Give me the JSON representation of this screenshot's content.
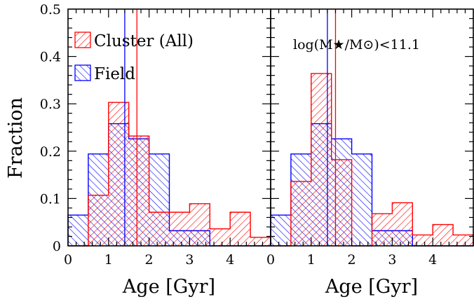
{
  "chart_data": [
    {
      "type": "histogram",
      "panel": "left",
      "annotation": "",
      "xlabel": "Age [Gyr]",
      "ylabel": "Fraction",
      "xlim": [
        0,
        5
      ],
      "ylim": [
        0,
        0.5
      ],
      "xticks": [
        "0",
        "1",
        "2",
        "3",
        "4"
      ],
      "yticks": [
        "0",
        "0.1",
        "0.2",
        "0.3",
        "0.4",
        "0.5"
      ],
      "legend": {
        "position": "top-left",
        "entries": [
          "Cluster (All)",
          "Field"
        ]
      },
      "bin_edges": [
        0,
        0.5,
        1,
        1.5,
        2,
        2.5,
        3,
        3.5,
        4,
        4.5,
        5
      ],
      "series": [
        {
          "name": "Cluster (All)",
          "color": "#ff0000",
          "values": [
            0.0,
            0.107,
            0.303,
            0.232,
            0.071,
            0.071,
            0.089,
            0.036,
            0.071,
            0.018
          ],
          "median": 1.7
        },
        {
          "name": "Field",
          "color": "#0000ff",
          "values": [
            0.065,
            0.194,
            0.258,
            0.226,
            0.194,
            0.032,
            0.032,
            0.0,
            0.0,
            0.0
          ],
          "median": 1.4
        }
      ]
    },
    {
      "type": "histogram",
      "panel": "right",
      "annotation": "log(M★/M⊙)<11.1",
      "xlabel": "Age [Gyr]",
      "ylabel": "",
      "xlim": [
        0,
        5
      ],
      "ylim": [
        0,
        0.5
      ],
      "xticks": [
        "0",
        "1",
        "2",
        "3",
        "4"
      ],
      "yticks": [],
      "legend": null,
      "bin_edges": [
        0,
        0.5,
        1,
        1.5,
        2,
        2.5,
        3,
        3.5,
        4,
        4.5,
        5
      ],
      "series": [
        {
          "name": "Cluster",
          "color": "#ff0000",
          "values": [
            0.0,
            0.136,
            0.364,
            0.182,
            0.0,
            0.068,
            0.091,
            0.023,
            0.045,
            0.023
          ],
          "median": 1.6
        },
        {
          "name": "Field",
          "color": "#0000ff",
          "values": [
            0.065,
            0.194,
            0.258,
            0.226,
            0.194,
            0.032,
            0.032,
            0.0,
            0.0,
            0.0
          ],
          "median": 1.4
        }
      ]
    }
  ]
}
